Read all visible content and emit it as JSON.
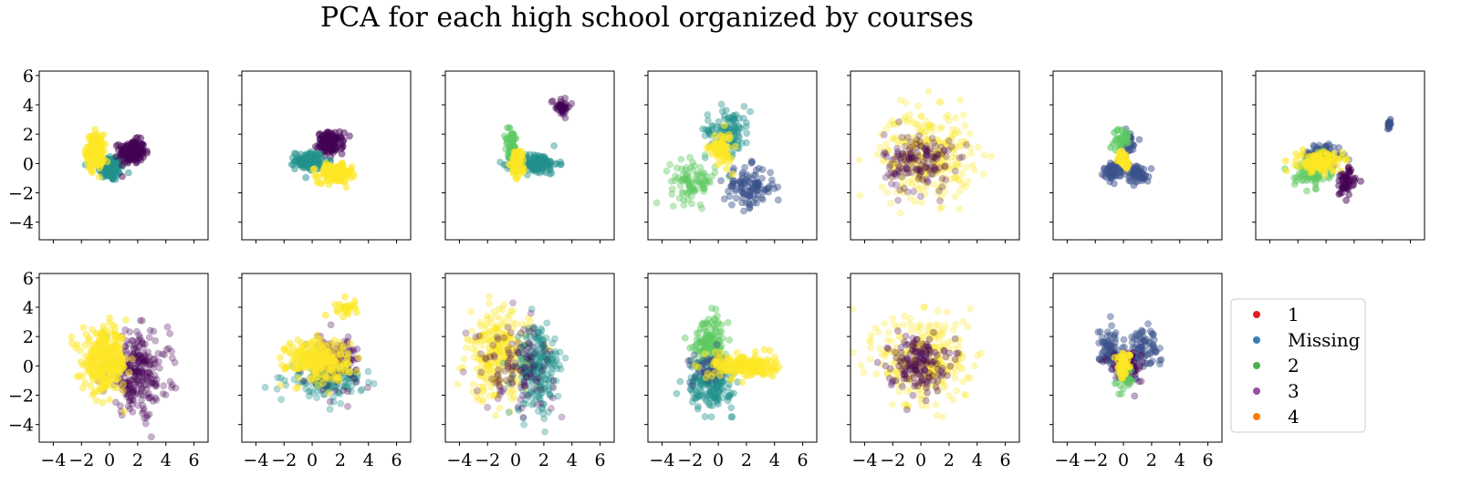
{
  "title": "PCA for each high school organized by courses",
  "chart_data": {
    "type": "scatter",
    "title": "PCA for each high school organized by courses",
    "grid": false,
    "shared_axes": true,
    "xlim": [
      -5,
      7
    ],
    "ylim": [
      -5.2,
      6.3
    ],
    "x_ticks": [
      "−4",
      "−2",
      "0",
      "2",
      "4",
      "6"
    ],
    "y_ticks": [
      "−4",
      "−2",
      "0",
      "2",
      "4",
      "6"
    ],
    "x_tick_values": [
      -4,
      -2,
      0,
      2,
      4,
      6
    ],
    "y_tick_values": [
      -4,
      -2,
      0,
      2,
      4,
      6
    ],
    "colors": {
      "dark_purple": "#440154",
      "indigo": "#3b528b",
      "teal": "#21918c",
      "green": "#5ec962",
      "yellow": "#fde725"
    },
    "legend": {
      "placement": "right of last row",
      "entries": [
        {
          "label": "1",
          "color": "#e41a1c"
        },
        {
          "label": "Missing",
          "color": "#377eb8"
        },
        {
          "label": "2",
          "color": "#4daf4a"
        },
        {
          "label": "3",
          "color": "#984ea3"
        },
        {
          "label": "4",
          "color": "#ff7f00"
        }
      ]
    },
    "panels": [
      {
        "clusters": [
          {
            "color": "teal",
            "cx": 0.1,
            "cy": -0.3,
            "sx": 0.45,
            "sy": 0.45,
            "n": 110,
            "alpha": 0.5
          },
          {
            "color": "dark_purple",
            "cx": 1.6,
            "cy": 0.8,
            "sx": 0.45,
            "sy": 0.4,
            "n": 160,
            "alpha": 0.5
          },
          {
            "color": "yellow",
            "cx": -1.0,
            "cy": 0.8,
            "sx": 0.3,
            "sy": 0.6,
            "n": 160,
            "alpha": 0.6
          }
        ]
      },
      {
        "clusters": [
          {
            "color": "dark_purple",
            "cx": 1.3,
            "cy": 1.4,
            "sx": 0.45,
            "sy": 0.35,
            "n": 130,
            "alpha": 0.5
          },
          {
            "color": "teal",
            "cx": -0.2,
            "cy": 0.2,
            "sx": 0.5,
            "sy": 0.3,
            "n": 110,
            "alpha": 0.5
          },
          {
            "color": "yellow",
            "cx": 1.6,
            "cy": -0.7,
            "sx": 0.6,
            "sy": 0.3,
            "n": 160,
            "alpha": 0.6
          }
        ]
      },
      {
        "clusters": [
          {
            "color": "dark_purple",
            "cx": 3.2,
            "cy": 3.9,
            "sx": 0.35,
            "sy": 0.3,
            "n": 40,
            "alpha": 0.4
          },
          {
            "color": "teal",
            "cx": 1.4,
            "cy": 0.0,
            "sx": 0.8,
            "sy": 0.35,
            "n": 140,
            "alpha": 0.45
          },
          {
            "color": "green",
            "cx": -0.3,
            "cy": 1.2,
            "sx": 0.25,
            "sy": 0.6,
            "n": 60,
            "alpha": 0.5
          },
          {
            "color": "yellow",
            "cx": 0.2,
            "cy": 0.0,
            "sx": 0.25,
            "sy": 0.5,
            "n": 60,
            "alpha": 0.6
          }
        ]
      },
      {
        "clusters": [
          {
            "color": "teal",
            "cx": 0.7,
            "cy": 2.3,
            "sx": 0.8,
            "sy": 0.8,
            "n": 110,
            "alpha": 0.4
          },
          {
            "color": "green",
            "cx": -1.8,
            "cy": -1.2,
            "sx": 0.8,
            "sy": 0.7,
            "n": 90,
            "alpha": 0.4
          },
          {
            "color": "indigo",
            "cx": 2.2,
            "cy": -1.6,
            "sx": 0.9,
            "sy": 0.7,
            "n": 110,
            "alpha": 0.45
          },
          {
            "color": "yellow",
            "cx": 0.2,
            "cy": 1.0,
            "sx": 0.4,
            "sy": 0.6,
            "n": 60,
            "alpha": 0.6
          }
        ]
      },
      {
        "clusters": [
          {
            "color": "yellow",
            "cx": 0.4,
            "cy": 0.6,
            "sx": 1.6,
            "sy": 1.5,
            "n": 300,
            "alpha": 0.3
          },
          {
            "color": "dark_purple",
            "cx": -0.2,
            "cy": 0.1,
            "sx": 1.2,
            "sy": 1.0,
            "n": 160,
            "alpha": 0.25
          }
        ]
      },
      {
        "clusters": [
          {
            "color": "indigo",
            "cx": -0.7,
            "cy": -0.5,
            "sx": 0.35,
            "sy": 0.3,
            "n": 60,
            "alpha": 0.5
          },
          {
            "color": "indigo",
            "cx": 1.0,
            "cy": -0.7,
            "sx": 0.4,
            "sy": 0.3,
            "n": 60,
            "alpha": 0.5
          },
          {
            "color": "indigo",
            "cx": 0.3,
            "cy": 1.4,
            "sx": 0.3,
            "sy": 0.4,
            "n": 40,
            "alpha": 0.5
          },
          {
            "color": "green",
            "cx": -0.1,
            "cy": 1.7,
            "sx": 0.3,
            "sy": 0.35,
            "n": 30,
            "alpha": 0.6
          },
          {
            "color": "yellow",
            "cx": 0.0,
            "cy": 0.3,
            "sx": 0.2,
            "sy": 0.25,
            "n": 40,
            "alpha": 0.7
          }
        ]
      },
      {
        "clusters": [
          {
            "color": "indigo",
            "cx": -0.2,
            "cy": 0.6,
            "sx": 0.7,
            "sy": 0.4,
            "n": 90,
            "alpha": 0.45
          },
          {
            "color": "green",
            "cx": -1.0,
            "cy": -0.6,
            "sx": 0.6,
            "sy": 0.5,
            "n": 80,
            "alpha": 0.5
          },
          {
            "color": "yellow",
            "cx": -0.4,
            "cy": 0.1,
            "sx": 0.8,
            "sy": 0.35,
            "n": 120,
            "alpha": 0.6
          },
          {
            "color": "dark_purple",
            "cx": 1.4,
            "cy": -1.3,
            "sx": 0.35,
            "sy": 0.5,
            "n": 50,
            "alpha": 0.5
          },
          {
            "color": "indigo",
            "cx": 4.5,
            "cy": 2.7,
            "sx": 0.1,
            "sy": 0.2,
            "n": 14,
            "alpha": 0.6
          }
        ]
      },
      {
        "clusters": [
          {
            "color": "dark_purple",
            "cx": 2.0,
            "cy": -0.5,
            "sx": 1.1,
            "sy": 1.4,
            "n": 260,
            "alpha": 0.3
          },
          {
            "color": "yellow",
            "cx": -0.3,
            "cy": 0.3,
            "sx": 0.8,
            "sy": 1.0,
            "n": 300,
            "alpha": 0.5
          }
        ]
      },
      {
        "clusters": [
          {
            "color": "teal",
            "cx": 1.0,
            "cy": -0.9,
            "sx": 1.3,
            "sy": 0.6,
            "n": 160,
            "alpha": 0.35
          },
          {
            "color": "dark_purple",
            "cx": 1.6,
            "cy": 0.4,
            "sx": 0.9,
            "sy": 0.9,
            "n": 120,
            "alpha": 0.3
          },
          {
            "color": "yellow",
            "cx": 0.4,
            "cy": 0.4,
            "sx": 1.1,
            "sy": 0.7,
            "n": 260,
            "alpha": 0.5
          },
          {
            "color": "yellow",
            "cx": 2.4,
            "cy": 3.9,
            "sx": 0.4,
            "sy": 0.3,
            "n": 25,
            "alpha": 0.6
          }
        ]
      },
      {
        "clusters": [
          {
            "color": "yellow",
            "cx": -1.2,
            "cy": 0.6,
            "sx": 1.1,
            "sy": 1.5,
            "n": 280,
            "alpha": 0.35
          },
          {
            "color": "teal",
            "cx": 1.6,
            "cy": -0.2,
            "sx": 0.8,
            "sy": 1.5,
            "n": 220,
            "alpha": 0.35
          },
          {
            "color": "dark_purple",
            "cx": 0.0,
            "cy": 0.0,
            "sx": 1.4,
            "sy": 1.4,
            "n": 120,
            "alpha": 0.25
          }
        ]
      },
      {
        "clusters": [
          {
            "color": "green",
            "cx": -0.6,
            "cy": 1.6,
            "sx": 0.6,
            "sy": 0.9,
            "n": 140,
            "alpha": 0.45
          },
          {
            "color": "teal",
            "cx": -0.6,
            "cy": -1.3,
            "sx": 0.8,
            "sy": 0.8,
            "n": 170,
            "alpha": 0.4
          },
          {
            "color": "indigo",
            "cx": -0.6,
            "cy": -0.2,
            "sx": 0.7,
            "sy": 0.5,
            "n": 60,
            "alpha": 0.4
          },
          {
            "color": "yellow",
            "cx": 1.8,
            "cy": 0.0,
            "sx": 1.1,
            "sy": 0.4,
            "n": 170,
            "alpha": 0.55
          }
        ]
      },
      {
        "clusters": [
          {
            "color": "yellow",
            "cx": 0.3,
            "cy": 0.4,
            "sx": 1.6,
            "sy": 1.6,
            "n": 300,
            "alpha": 0.3
          },
          {
            "color": "dark_purple",
            "cx": -0.3,
            "cy": 0.2,
            "sx": 1.0,
            "sy": 0.9,
            "n": 160,
            "alpha": 0.3
          }
        ]
      },
      {
        "clusters": [
          {
            "color": "indigo",
            "cx": -1.0,
            "cy": 1.3,
            "sx": 0.4,
            "sy": 0.7,
            "n": 70,
            "alpha": 0.45
          },
          {
            "color": "indigo",
            "cx": 1.3,
            "cy": 1.3,
            "sx": 0.6,
            "sy": 0.7,
            "n": 80,
            "alpha": 0.45
          },
          {
            "color": "dark_purple",
            "cx": 0.2,
            "cy": 0.0,
            "sx": 0.6,
            "sy": 0.6,
            "n": 80,
            "alpha": 0.35
          },
          {
            "color": "green",
            "cx": 0.0,
            "cy": -0.8,
            "sx": 0.3,
            "sy": 0.4,
            "n": 35,
            "alpha": 0.5
          },
          {
            "color": "yellow",
            "cx": 0.0,
            "cy": 0.1,
            "sx": 0.25,
            "sy": 0.4,
            "n": 50,
            "alpha": 0.7
          }
        ]
      }
    ]
  }
}
